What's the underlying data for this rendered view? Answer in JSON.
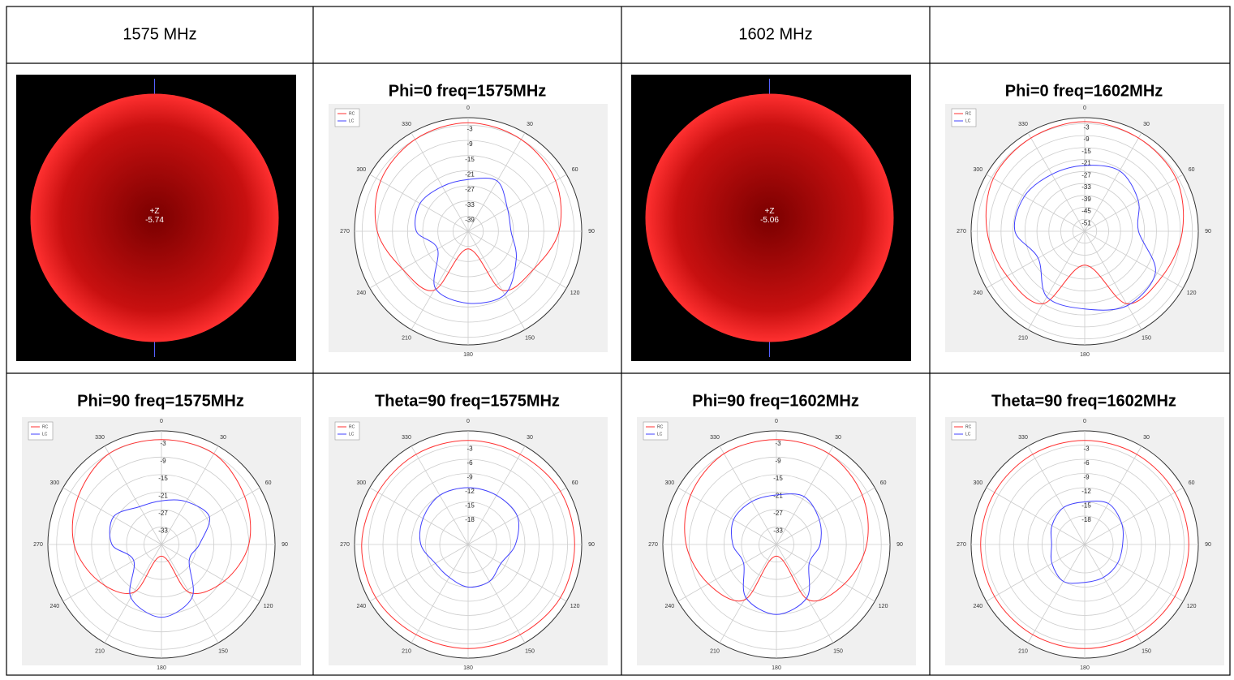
{
  "header": [
    "1575 MHz",
    "1602 MHz"
  ],
  "patterns": [
    {
      "label": "+Z",
      "value": -5.74
    },
    {
      "label": "+Z",
      "value": -5.06
    }
  ],
  "chart_data": [
    {
      "type": "polar",
      "title": "Phi=0 freq=1575MHz",
      "rlim": [
        -45,
        0
      ],
      "rticks": [
        -3,
        -9,
        -15,
        -21,
        -27,
        -33,
        -39
      ],
      "aticks": [
        0,
        30,
        60,
        90,
        120,
        150,
        180,
        210,
        240,
        270,
        300,
        330
      ],
      "x": [
        0,
        30,
        60,
        90,
        120,
        150,
        180,
        210,
        240,
        270,
        300,
        330
      ],
      "series": [
        {
          "name": "RC",
          "color": "#ff3030",
          "values": [
            -2,
            -3,
            -5,
            -9,
            -15,
            -18,
            -38,
            -18,
            -15,
            -9,
            -5,
            -3
          ]
        },
        {
          "name": "LC",
          "color": "#4040ff",
          "values": [
            -24.5,
            -22,
            -27,
            -28,
            -23,
            -16,
            -16.5,
            -19,
            -31,
            -24.5,
            -23,
            -24.5
          ]
        }
      ]
    },
    {
      "type": "polar",
      "title": "Phi=0 freq=1602MHz",
      "rlim": [
        -57,
        0
      ],
      "rticks": [
        -3,
        -9,
        -15,
        -21,
        -27,
        -33,
        -39,
        -45,
        -51
      ],
      "aticks": [
        0,
        30,
        60,
        90,
        120,
        150,
        180,
        210,
        240,
        270,
        300,
        330
      ],
      "x": [
        0,
        30,
        60,
        90,
        120,
        150,
        180,
        210,
        240,
        270,
        300,
        330
      ],
      "series": [
        {
          "name": "RC",
          "color": "#ff3030",
          "values": [
            -2,
            -3,
            -4,
            -8,
            -12,
            -15,
            -40,
            -15,
            -12,
            -8,
            -4,
            -3
          ]
        },
        {
          "name": "LC",
          "color": "#4040ff",
          "values": [
            -24,
            -22,
            -26,
            -30,
            -16,
            -14,
            -18,
            -19,
            -30,
            -22,
            -22,
            -24
          ]
        }
      ]
    },
    {
      "type": "polar",
      "title": "Phi=90 freq=1575MHz",
      "rlim": [
        -39,
        0
      ],
      "rticks": [
        -3,
        -9,
        -15,
        -21,
        -27,
        -33
      ],
      "aticks": [
        0,
        30,
        60,
        90,
        120,
        150,
        180,
        210,
        240,
        270,
        300,
        330
      ],
      "x": [
        0,
        30,
        60,
        90,
        120,
        150,
        180,
        210,
        240,
        270,
        300,
        330
      ],
      "series": [
        {
          "name": "RC",
          "color": "#ff3030",
          "values": [
            -3,
            -3,
            -6,
            -9,
            -14,
            -20,
            -35,
            -20,
            -14,
            -9,
            -6,
            -3
          ]
        },
        {
          "name": "LC",
          "color": "#4040ff",
          "values": [
            -24,
            -22,
            -20,
            -26,
            -28,
            -18,
            -14,
            -18,
            -28,
            -22,
            -20,
            -24
          ]
        }
      ]
    },
    {
      "type": "polar",
      "title": "Theta=90 freq=1575MHz",
      "rlim": [
        -24,
        0
      ],
      "rticks": [
        -3,
        -6,
        -9,
        -12,
        -15,
        -18
      ],
      "aticks": [
        0,
        30,
        60,
        90,
        120,
        150,
        180,
        210,
        240,
        270,
        300,
        330
      ],
      "x": [
        0,
        30,
        60,
        90,
        120,
        150,
        180,
        210,
        240,
        270,
        300,
        330
      ],
      "series": [
        {
          "name": "RC",
          "color": "#ff3030",
          "values": [
            -2,
            -2,
            -1.5,
            -1.5,
            -1.5,
            -2,
            -2,
            -2,
            -1.5,
            -1.5,
            -2,
            -2
          ]
        },
        {
          "name": "LC",
          "color": "#4040ff",
          "values": [
            -12,
            -12,
            -12,
            -14,
            -16,
            -15,
            -15,
            -16,
            -16,
            -14,
            -13,
            -12
          ]
        }
      ]
    },
    {
      "type": "polar",
      "title": "Phi=90 freq=1602MHz",
      "rlim": [
        -39,
        0
      ],
      "rticks": [
        -3,
        -9,
        -15,
        -21,
        -27,
        -33
      ],
      "aticks": [
        0,
        30,
        60,
        90,
        120,
        150,
        180,
        210,
        240,
        270,
        300,
        330
      ],
      "x": [
        0,
        30,
        60,
        90,
        120,
        150,
        180,
        210,
        240,
        270,
        300,
        330
      ],
      "series": [
        {
          "name": "RC",
          "color": "#ff3030",
          "values": [
            -3,
            -3,
            -5,
            -8,
            -12,
            -17,
            -35,
            -17,
            -12,
            -8,
            -5,
            -3
          ]
        },
        {
          "name": "LC",
          "color": "#4040ff",
          "values": [
            -22,
            -20,
            -22,
            -24,
            -26,
            -18,
            -15,
            -18,
            -26,
            -24,
            -22,
            -22
          ]
        }
      ]
    },
    {
      "type": "polar",
      "title": "Theta=90 freq=1602MHz",
      "rlim": [
        -24,
        0
      ],
      "rticks": [
        -3,
        -6,
        -9,
        -12,
        -15,
        -18
      ],
      "aticks": [
        0,
        30,
        60,
        90,
        120,
        150,
        180,
        210,
        240,
        270,
        300,
        330
      ],
      "x": [
        0,
        30,
        60,
        90,
        120,
        150,
        180,
        210,
        240,
        270,
        300,
        330
      ],
      "series": [
        {
          "name": "RC",
          "color": "#ff3030",
          "values": [
            -2,
            -2,
            -2,
            -2,
            -2,
            -2,
            -2,
            -2,
            -2,
            -2,
            -2,
            -2
          ]
        },
        {
          "name": "LC",
          "color": "#4040ff",
          "values": [
            -15,
            -14,
            -15,
            -16,
            -16,
            -16,
            -16,
            -15,
            -16,
            -17,
            -16,
            -15
          ]
        }
      ]
    }
  ]
}
